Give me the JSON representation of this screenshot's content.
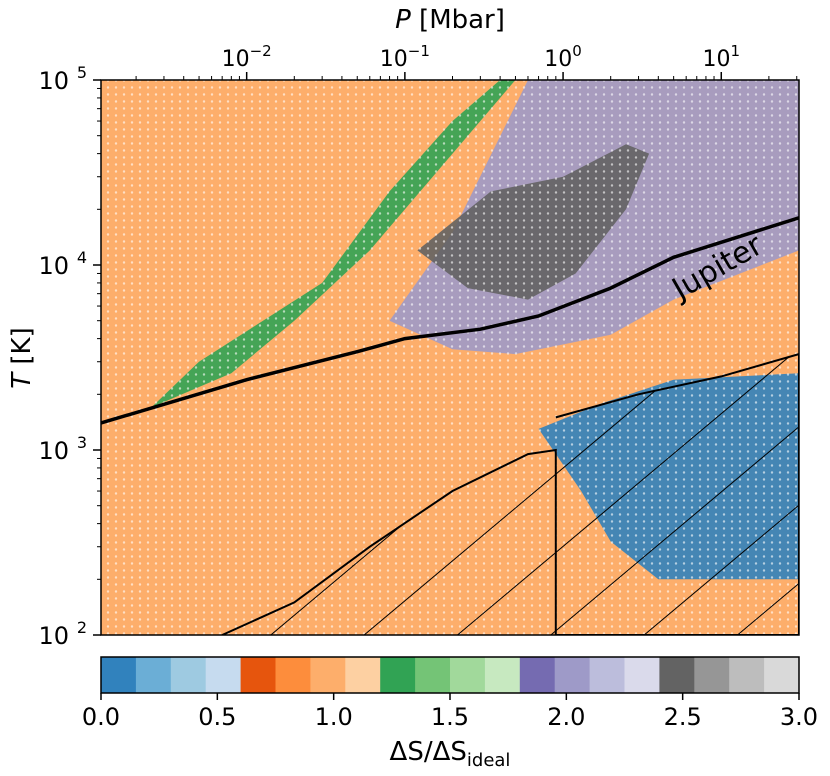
{
  "chart_data": {
    "type": "heatmap",
    "title": "",
    "xlabel_top": "P [Mbar]",
    "xlabel_top_var": "P",
    "xlabel_top_unit": " [Mbar]",
    "ylabel": "T [K]",
    "ylabel_var": "T",
    "ylabel_unit": " [K]",
    "x_scale": "log",
    "y_scale": "log",
    "x_ticks": [
      {
        "base": "10",
        "exp": "−2",
        "value": 0.01
      },
      {
        "base": "10",
        "exp": "−1",
        "value": 0.1
      },
      {
        "base": "10",
        "exp": "0",
        "value": 1
      },
      {
        "base": "10",
        "exp": "1",
        "value": 10
      }
    ],
    "y_ticks": [
      {
        "base": "10",
        "exp": "2",
        "value": 100
      },
      {
        "base": "10",
        "exp": "3",
        "value": 1000
      },
      {
        "base": "10",
        "exp": "4",
        "value": 10000
      },
      {
        "base": "10",
        "exp": "5",
        "value": 100000
      }
    ],
    "xlim": [
      0.0012,
      31
    ],
    "ylim": [
      100,
      100000
    ],
    "annotation": "Jupiter",
    "background_color": "#fdae6b",
    "jupiter_adiabat": [
      [
        0.0012,
        1400
      ],
      [
        0.01,
        2400
      ],
      [
        0.05,
        3400
      ],
      [
        0.1,
        4000
      ],
      [
        0.3,
        4500
      ],
      [
        0.7,
        5300
      ],
      [
        2.0,
        7500
      ],
      [
        5.0,
        11000
      ],
      [
        31,
        18000
      ]
    ],
    "regions": [
      {
        "label": "ΔS/ΔS_ideal 1.0–1.5 (green)",
        "color": "#31a354",
        "boundary": [
          [
            0.0025,
            1700
          ],
          [
            0.005,
            3000
          ],
          [
            0.03,
            8000
          ],
          [
            0.08,
            25000
          ],
          [
            0.2,
            60000
          ],
          [
            0.4,
            100000
          ],
          [
            0.5,
            100000
          ],
          [
            0.25,
            50000
          ],
          [
            0.06,
            12000
          ],
          [
            0.02,
            5000
          ],
          [
            0.008,
            2600
          ]
        ]
      },
      {
        "label": "ΔS/ΔS_ideal 2.0–2.5 (purple)",
        "color": "#9e9ac8",
        "boundary": [
          [
            0.08,
            5000
          ],
          [
            0.2,
            15000
          ],
          [
            0.6,
            100000
          ],
          [
            31,
            100000
          ],
          [
            31,
            12000
          ],
          [
            5,
            6500
          ],
          [
            2,
            4200
          ],
          [
            0.5,
            3300
          ],
          [
            0.2,
            3500
          ]
        ]
      },
      {
        "label": "ΔS/ΔS_ideal 2.5–3.0 (grey)",
        "color": "#636363",
        "boundary": [
          [
            0.12,
            12000
          ],
          [
            0.35,
            25000
          ],
          [
            1.0,
            30000
          ],
          [
            2.5,
            45000
          ],
          [
            3.5,
            40000
          ],
          [
            2.5,
            20000
          ],
          [
            1.2,
            9000
          ],
          [
            0.6,
            6500
          ],
          [
            0.25,
            7500
          ]
        ]
      },
      {
        "label": "ΔS/ΔS_ideal 0.0–0.5 (blue)",
        "color": "#3182bd",
        "boundary": [
          [
            0.7,
            1300
          ],
          [
            1.8,
            1800
          ],
          [
            5,
            2400
          ],
          [
            31,
            2600
          ],
          [
            31,
            200
          ],
          [
            4,
            200
          ],
          [
            2,
            320
          ],
          [
            1.3,
            600
          ]
        ]
      }
    ],
    "hatched_regions": [
      {
        "boundary": [
          [
            0.007,
            100
          ],
          [
            0.02,
            150
          ],
          [
            0.06,
            300
          ],
          [
            0.2,
            600
          ],
          [
            0.6,
            950
          ],
          [
            0.9,
            1000
          ],
          [
            0.9,
            100
          ]
        ]
      },
      {
        "boundary": [
          [
            0.9,
            1500
          ],
          [
            3,
            2000
          ],
          [
            10,
            2500
          ],
          [
            31,
            3300
          ],
          [
            31,
            100
          ],
          [
            0.9,
            100
          ]
        ]
      }
    ],
    "colorbar": {
      "label": "ΔS/ΔS_ideal",
      "label_main": "ΔS/ΔS",
      "label_sub": "ideal",
      "range": [
        0.0,
        3.0
      ],
      "tick_labels": [
        "0.0",
        "0.5",
        "1.0",
        "1.5",
        "2.0",
        "2.5",
        "3.0"
      ],
      "tick_values": [
        0.0,
        0.5,
        1.0,
        1.5,
        2.0,
        2.5,
        3.0
      ],
      "colors": [
        "#3182bd",
        "#6baed6",
        "#9ecae1",
        "#c6dbef",
        "#e6550d",
        "#fd8d3c",
        "#fdae6b",
        "#fdd0a2",
        "#31a354",
        "#74c476",
        "#a1d99b",
        "#c7e9c0",
        "#756bb1",
        "#9e9ac8",
        "#bcbddc",
        "#dadaeb",
        "#636363",
        "#969696",
        "#bdbdbd",
        "#d9d9d9"
      ]
    }
  }
}
